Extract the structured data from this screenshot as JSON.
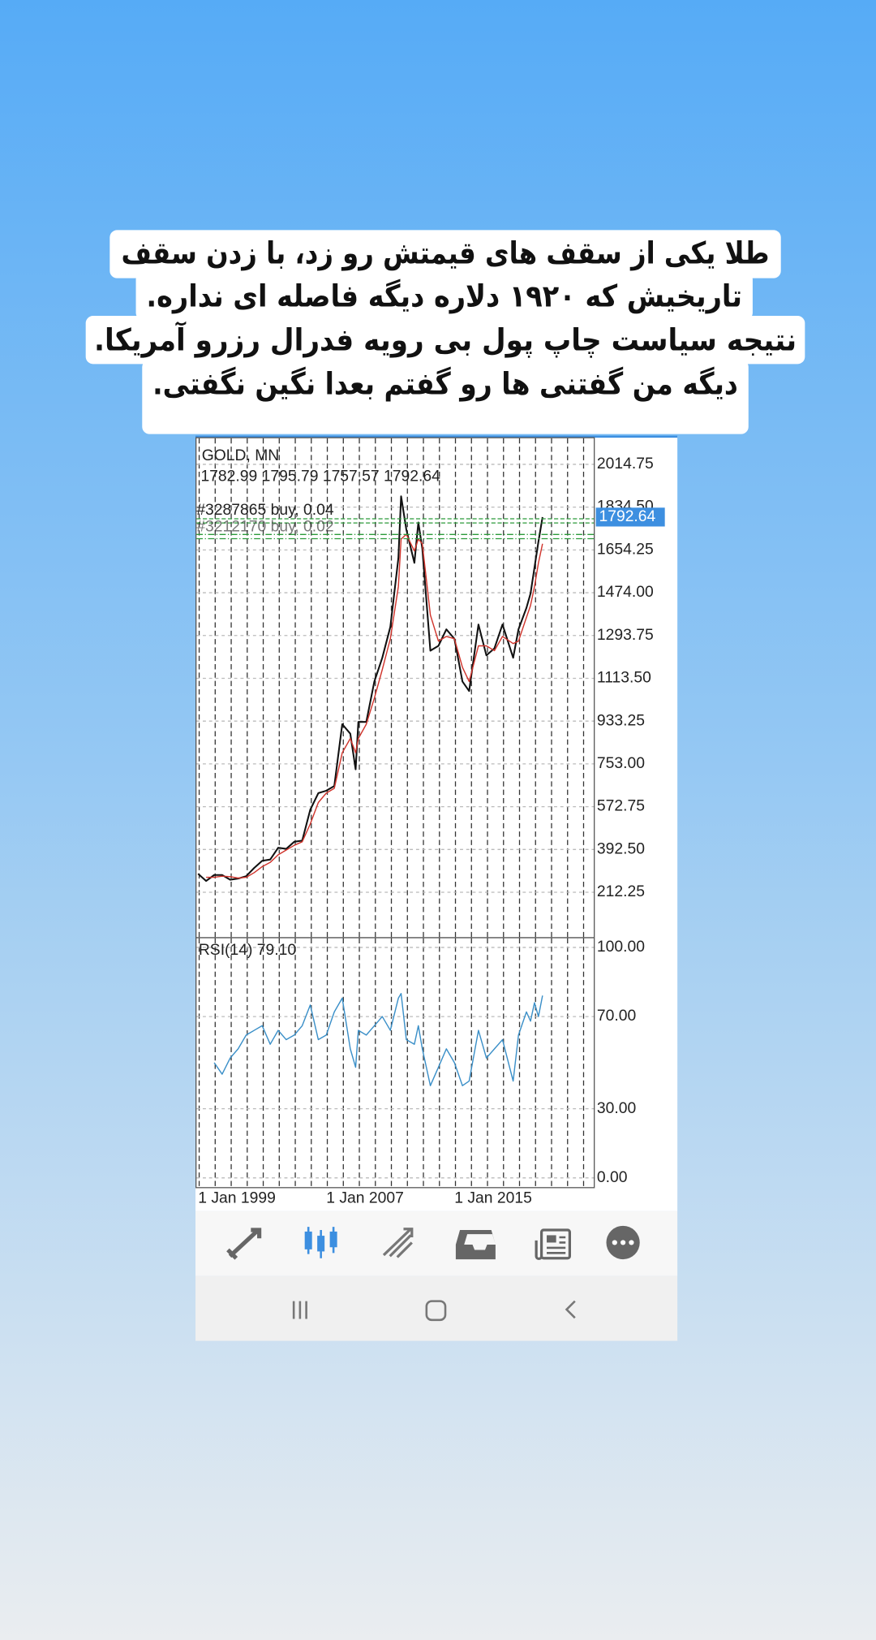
{
  "caption": {
    "lines": [
      "طلا یکی از سقف های قیمتش رو زد، با زدن سقف",
      "تاریخیش که ۱۹۲۰ دلاره دیگه فاصله ای نداره.",
      "نتیجه سیاست چاپ پول بی رویه فدرال رزرو آمریکا.",
      "دیگه من گفتنی ها رو گفتم بعدا نگین نگفتی."
    ]
  },
  "chart_data": [
    {
      "type": "line",
      "title": "GOLD, MN",
      "subtitle": "1782.99 1795.79 1757.57 1792.64",
      "annotations": [
        "#3287865 buy, 0.04",
        "#3212170 buy, 0.02"
      ],
      "price_tag": "1792.64",
      "x": [
        1999,
        1999.5,
        2000,
        2000.5,
        2001,
        2001.5,
        2002,
        2002.5,
        2003,
        2003.5,
        2004,
        2004.5,
        2005,
        2005.5,
        2006,
        2006.5,
        2007,
        2007.5,
        2008,
        2008.5,
        2008.83,
        2009,
        2009.5,
        2010,
        2010.5,
        2011,
        2011.5,
        2011.67,
        2012,
        2012.5,
        2012.75,
        2013,
        2013.5,
        2014,
        2014.5,
        2015,
        2015.5,
        2015.92,
        2016.5,
        2017,
        2017.5,
        2018,
        2018.67,
        2019,
        2019.5,
        2019.75,
        2020,
        2020.25,
        2020.5
      ],
      "series": [
        {
          "color": "#111111",
          "values": [
            290,
            260,
            285,
            285,
            265,
            270,
            280,
            315,
            345,
            350,
            400,
            395,
            425,
            430,
            560,
            630,
            640,
            660,
            920,
            880,
            730,
            930,
            930,
            1100,
            1200,
            1330,
            1620,
            1880,
            1740,
            1600,
            1770,
            1660,
            1230,
            1250,
            1320,
            1280,
            1100,
            1060,
            1340,
            1210,
            1240,
            1340,
            1200,
            1320,
            1410,
            1470,
            1580,
            1690,
            1792.64
          ]
        },
        {
          "color": "#d0342c",
          "values": [
            null,
            275,
            275,
            280,
            278,
            272,
            275,
            295,
            320,
            338,
            370,
            390,
            410,
            425,
            500,
            590,
            630,
            650,
            800,
            860,
            800,
            860,
            920,
            1030,
            1150,
            1280,
            1500,
            1700,
            1720,
            1650,
            1700,
            1680,
            1380,
            1270,
            1290,
            1280,
            1160,
            1100,
            1250,
            1250,
            1230,
            1290,
            1260,
            1270,
            1370,
            1420,
            1500,
            1600,
            1680
          ]
        }
      ],
      "xlim": [
        1998.9,
        2023.7
      ],
      "ylim": [
        23.2,
        2124.7
      ],
      "yticks": [
        2014.75,
        {
          "value": 1834.5,
          "label": "1834.50"
        },
        1654.25,
        {
          "value": 1474,
          "label": "1474.00"
        },
        1293.75,
        {
          "value": 1113.5,
          "label": "1113.50"
        },
        933.25,
        {
          "value": 753,
          "label": "753.00"
        },
        572.75,
        {
          "value": 392.5,
          "label": "392.50"
        },
        212.25
      ]
    },
    {
      "type": "line",
      "title": "RSI(14) 79.10",
      "x": [
        2000,
        2000.5,
        2001,
        2001.5,
        2002,
        2002.5,
        2003,
        2003.5,
        2004,
        2004.5,
        2005,
        2005.5,
        2006,
        2006.5,
        2007,
        2007.5,
        2008,
        2008.5,
        2008.83,
        2009,
        2009.5,
        2010,
        2010.5,
        2011,
        2011.5,
        2011.67,
        2012,
        2012.5,
        2012.75,
        2013,
        2013.5,
        2014,
        2014.5,
        2015,
        2015.5,
        2015.92,
        2016.5,
        2017,
        2017.5,
        2018,
        2018.67,
        2019,
        2019.5,
        2019.75,
        2020,
        2020.25,
        2020.5
      ],
      "series": [
        {
          "color": "#3a8fc8",
          "values": [
            50,
            45,
            52,
            56,
            62,
            64,
            66,
            58,
            64,
            60,
            62,
            66,
            75,
            60,
            62,
            72,
            78,
            56,
            48,
            64,
            62,
            66,
            70,
            64,
            78,
            80,
            60,
            58,
            66,
            56,
            40,
            48,
            56,
            50,
            40,
            42,
            64,
            52,
            56,
            60,
            42,
            62,
            72,
            68,
            76,
            70,
            79.1
          ]
        }
      ],
      "xlim": [
        1998.9,
        2023.7
      ],
      "ylim": [
        -4,
        104
      ],
      "yticks": [
        {
          "value": 100,
          "label": "100.00"
        },
        {
          "value": 70,
          "label": "70.00"
        },
        {
          "value": 30,
          "label": "30.00"
        },
        {
          "value": 0,
          "label": "0.00"
        }
      ],
      "xticks": [
        {
          "value": 1999,
          "label": "1 Jan 1999"
        },
        {
          "value": 2007,
          "label": "1 Jan 2007"
        },
        {
          "value": 2015,
          "label": "1 Jan 2015"
        }
      ]
    }
  ]
}
